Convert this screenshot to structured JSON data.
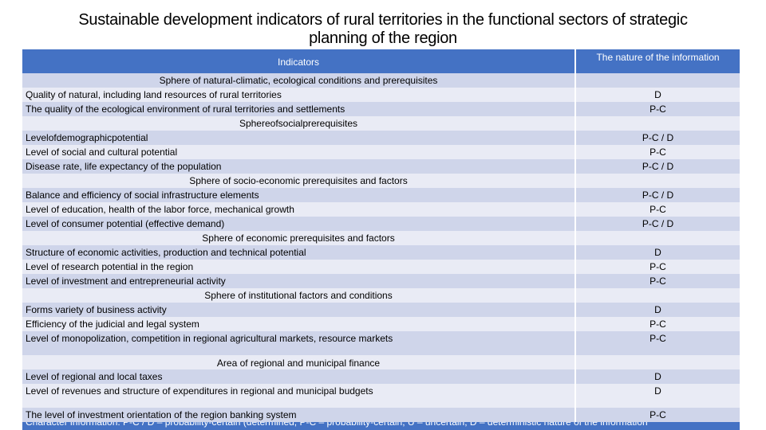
{
  "title": {
    "line1": "Sustainable development indicators of rural territories in the functional sectors of strategic",
    "line2": "planning of the region"
  },
  "table": {
    "header": {
      "col1": "Indicators",
      "col2": "The nature of the information"
    },
    "rows": [
      {
        "kind": "section",
        "text": "Sphere of natural-climatic, ecological conditions and prerequisites"
      },
      {
        "kind": "item",
        "text": "Quality of natural, including land resources of rural territories",
        "value": "D"
      },
      {
        "kind": "item",
        "text": "The quality of the ecological environment of rural territories and settlements",
        "value": "P-C"
      },
      {
        "kind": "section",
        "text": "Sphereofsocialprerequisites"
      },
      {
        "kind": "item",
        "text": "Levelofdemographicpotential",
        "value": "P-C / D"
      },
      {
        "kind": "item",
        "text": "Level of social and cultural potential",
        "value": "P-C"
      },
      {
        "kind": "item",
        "text": "Disease rate, life expectancy of the population",
        "value": "P-C / D"
      },
      {
        "kind": "section",
        "text": "Sphere of socio-economic prerequisites and factors"
      },
      {
        "kind": "item",
        "text": "Balance and efficiency of social infrastructure elements",
        "value": "P-C / D"
      },
      {
        "kind": "item",
        "text": "Level of education, health of the labor force, mechanical growth",
        "value": "P-C"
      },
      {
        "kind": "item",
        "text": "Level of consumer potential (effective demand)",
        "value": "P-C / D"
      },
      {
        "kind": "section",
        "text": "Sphere of economic prerequisites and factors"
      },
      {
        "kind": "item",
        "text": "Structure of economic activities, production and technical potential",
        "value": "D"
      },
      {
        "kind": "item",
        "text": "Level of research potential in the region",
        "value": "P-C"
      },
      {
        "kind": "item",
        "text": "Level of investment and entrepreneurial activity",
        "value": "P-C"
      },
      {
        "kind": "section",
        "text": "Sphere of institutional factors and conditions"
      },
      {
        "kind": "item",
        "text": "Forms variety of business activity",
        "value": "D"
      },
      {
        "kind": "item",
        "text": "Efficiency of the judicial and legal system",
        "value": "P-C"
      },
      {
        "kind": "item",
        "text": "Level of monopolization, competition in regional agricultural markets, resource markets",
        "value": "P-C"
      },
      {
        "kind": "section",
        "text": "Area of regional and municipal finance"
      },
      {
        "kind": "item",
        "text": "Level of regional and local taxes",
        "value": "D"
      },
      {
        "kind": "item",
        "text": "Level of revenues and structure of expenditures in regional and municipal budgets",
        "value": "D"
      },
      {
        "kind": "item",
        "text": "The level of investment orientation of the region banking system",
        "value": "P-C"
      }
    ],
    "footer": "Character information: P-C / D – probability-certain (determined, P-C – probability-certain, U – uncertain, D – deterministic nature of the information"
  },
  "colors": {
    "header": "#4472c4",
    "row_dark": "#cfd5ea",
    "row_light": "#e9ebf5"
  }
}
